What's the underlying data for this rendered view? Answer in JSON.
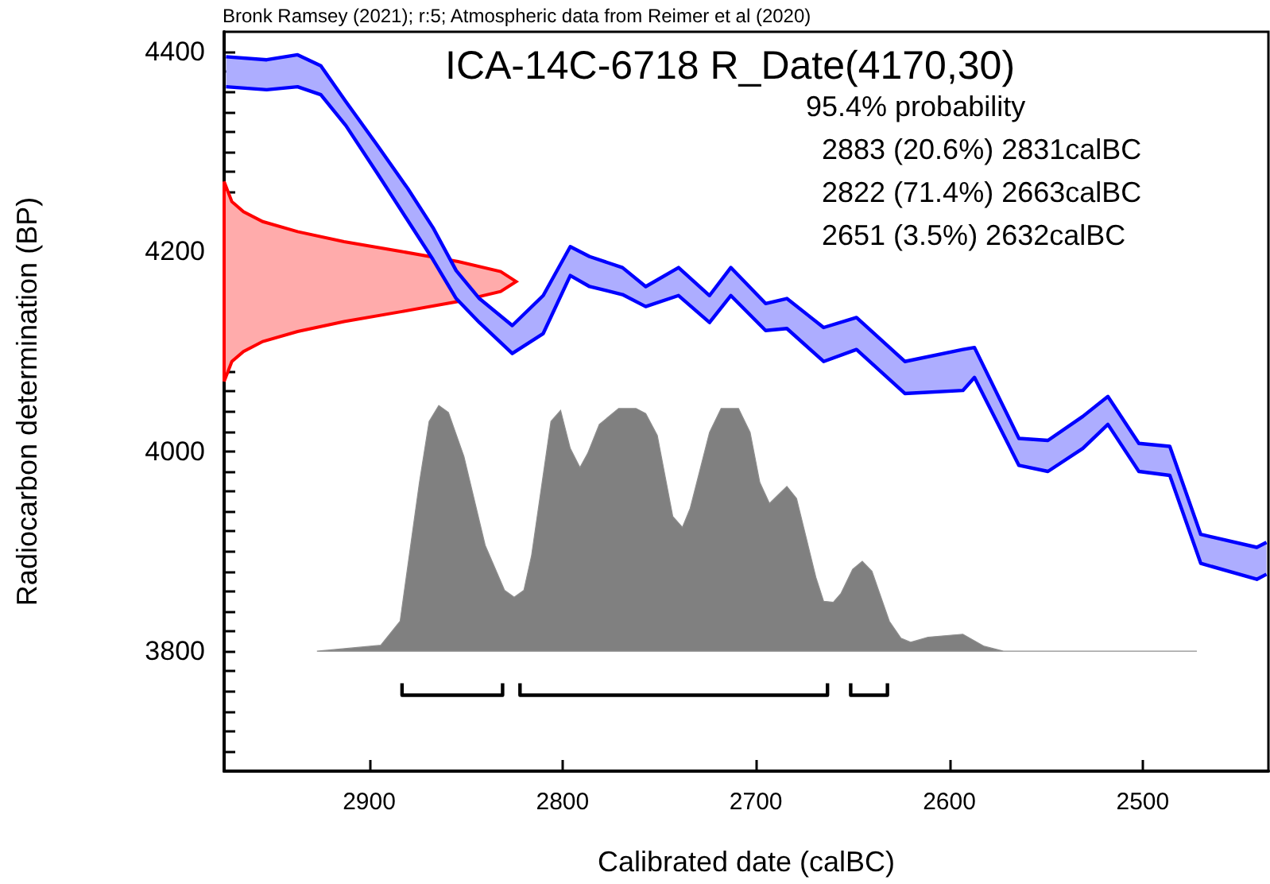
{
  "chart_data": {
    "type": "line",
    "title": "ICA-14C-6718 R_Date(4170,30)",
    "xlabel": "Calibrated date (calBC)",
    "ylabel": "Radiocarbon determination (BP)",
    "annotations": [
      "Bronk Ramsey (2021); r:5; Atmospheric data from Reimer et al (2020)",
      "95.4% probability",
      "2883 (20.6%) 2831calBC",
      "2822 (71.4%) 2663calBC",
      "2651 (3.5%) 2632calBC"
    ],
    "xlim": [
      2975,
      2435
    ],
    "xticks": [
      2900,
      2800,
      2700,
      2600,
      2500
    ],
    "ylim": [
      3680,
      4420
    ],
    "yticks": [
      {
        "value": 3700,
        "label": null
      },
      {
        "value": 3720,
        "label": null
      },
      {
        "value": 3740,
        "label": null
      },
      {
        "value": 3760,
        "label": null
      },
      {
        "value": 3780,
        "label": null
      },
      3800,
      {
        "value": 3820,
        "label": null
      },
      {
        "value": 3840,
        "label": null
      },
      {
        "value": 3860,
        "label": null
      },
      {
        "value": 3880,
        "label": null
      },
      {
        "value": 3900,
        "label": null
      },
      {
        "value": 3920,
        "label": null
      },
      {
        "value": 3940,
        "label": null
      },
      {
        "value": 3960,
        "label": null
      },
      {
        "value": 3980,
        "label": null
      },
      4000,
      {
        "value": 4020,
        "label": null
      },
      {
        "value": 4040,
        "label": null
      },
      {
        "value": 4060,
        "label": null
      },
      {
        "value": 4080,
        "label": null
      },
      {
        "value": 4100,
        "label": null
      },
      {
        "value": 4120,
        "label": null
      },
      {
        "value": 4140,
        "label": null
      },
      {
        "value": 4160,
        "label": null
      },
      {
        "value": 4180,
        "label": null
      },
      4200,
      {
        "value": 4220,
        "label": null
      },
      {
        "value": 4240,
        "label": null
      },
      {
        "value": 4260,
        "label": null
      },
      {
        "value": 4280,
        "label": null
      },
      {
        "value": 4300,
        "label": null
      },
      {
        "value": 4320,
        "label": null
      },
      {
        "value": 4340,
        "label": null
      },
      {
        "value": 4360,
        "label": null
      },
      {
        "value": 4380,
        "label": null
      },
      4400
    ],
    "grid": false,
    "series": [
      {
        "color": "#0000ff",
        "x": [
          2974,
          2953,
          2937,
          2925,
          2912,
          2896,
          2880,
          2867,
          2855,
          2843,
          2826,
          2810,
          2796,
          2786,
          2769,
          2757,
          2740,
          2724,
          2713,
          2695,
          2684,
          2665,
          2648,
          2623,
          2593,
          2587,
          2564,
          2549,
          2531,
          2518,
          2502,
          2486,
          2470,
          2441,
          2436
        ],
        "upper": [
          4395,
          4392,
          4397,
          4386,
          4350,
          4307,
          4263,
          4224,
          4181,
          4153,
          4126,
          4156,
          4205,
          4195,
          4184,
          4165,
          4184,
          4156,
          4184,
          4148,
          4153,
          4124,
          4134,
          4090,
          4102,
          4104,
          4013,
          4011,
          4035,
          4055,
          4008,
          4005,
          3917,
          3904,
          3909
        ],
        "lower": [
          4365,
          4362,
          4365,
          4357,
          4326,
          4279,
          4231,
          4192,
          4153,
          4129,
          4098,
          4118,
          4176,
          4165,
          4157,
          4145,
          4156,
          4129,
          4156,
          4121,
          4123,
          4090,
          4102,
          4058,
          4061,
          4074,
          3986,
          3980,
          4003,
          4027,
          3980,
          3976,
          3888,
          3872,
          3877
        ],
        "values": [
          4395,
          4392,
          4397,
          4386,
          4350,
          4307,
          4263,
          4224,
          4181,
          4153,
          4126,
          4156,
          4205,
          4195,
          4184,
          4165,
          4184,
          4156,
          4184,
          4148,
          4153,
          4124,
          4134,
          4090,
          4102,
          4104,
          4013,
          4011,
          4035,
          4055,
          4008,
          4005,
          3917,
          3904,
          3909
        ]
      },
      {
        "color": "#0000ff",
        "x": [
          2974,
          2953,
          2937,
          2925,
          2912,
          2896,
          2880,
          2867,
          2855,
          2843,
          2826,
          2810,
          2796,
          2786,
          2769,
          2757,
          2740,
          2724,
          2713,
          2695,
          2684,
          2665,
          2648,
          2623,
          2593,
          2587,
          2564,
          2549,
          2531,
          2518,
          2502,
          2486,
          2470,
          2441,
          2436
        ],
        "values": [
          4365,
          4362,
          4365,
          4357,
          4326,
          4279,
          4231,
          4192,
          4153,
          4129,
          4098,
          4118,
          4176,
          4165,
          4157,
          4145,
          4156,
          4129,
          4156,
          4121,
          4123,
          4090,
          4102,
          4058,
          4061,
          4074,
          3986,
          3980,
          4003,
          4027,
          3980,
          3976,
          3888,
          3872,
          3877
        ]
      },
      {
        "type": "area",
        "color": "#ff0000",
        "x": [
          2975,
          2971,
          2965,
          2955,
          2937,
          2913,
          2883,
          2854,
          2832,
          2824,
          2832,
          2854,
          2883,
          2913,
          2937,
          2955,
          2965,
          2971,
          2975
        ],
        "values": [
          4070,
          4090,
          4100,
          4110,
          4120,
          4130,
          4140,
          4150,
          4160,
          4170,
          4180,
          4190,
          4200,
          4210,
          4220,
          4230,
          4240,
          4250,
          4270
        ]
      },
      {
        "type": "area",
        "color": "#808080",
        "x": [
          2927,
          2894,
          2884,
          2874,
          2869,
          2864,
          2859,
          2851,
          2840,
          2830,
          2825,
          2820,
          2816,
          2806,
          2801,
          2796,
          2791,
          2787,
          2781,
          2771,
          2762,
          2757,
          2751,
          2743,
          2738,
          2734,
          2724,
          2718,
          2709,
          2703,
          2698,
          2693,
          2684,
          2679,
          2669,
          2665,
          2660,
          2656,
          2650,
          2645,
          2640,
          2631,
          2625,
          2620,
          2611,
          2593,
          2582,
          2572,
          2472
        ],
        "values": [
          3800,
          3806,
          3830,
          3969,
          4030,
          4046,
          4039,
          3995,
          3906,
          3861,
          3854,
          3861,
          3896,
          4030,
          4041,
          4003,
          3984,
          3998,
          4027,
          4043,
          4043,
          4038,
          4016,
          3935,
          3924,
          3943,
          4019,
          4043,
          4043,
          4019,
          3969,
          3948,
          3965,
          3953,
          3874,
          3850,
          3849,
          3858,
          3882,
          3890,
          3880,
          3830,
          3813,
          3809,
          3814,
          3817,
          3805,
          3800,
          3800
        ]
      },
      {
        "color": "#000000",
        "x": [
          2883,
          2883,
          2831,
          2831
        ],
        "values": [
          3768,
          3756,
          3756,
          3768
        ]
      },
      {
        "color": "#000000",
        "x": [
          2822,
          2822,
          2663,
          2663
        ],
        "values": [
          3768,
          3756,
          3756,
          3768
        ]
      },
      {
        "color": "#000000",
        "x": [
          2651,
          2651,
          2632,
          2632
        ],
        "values": [
          3768,
          3756,
          3756,
          3768
        ]
      }
    ]
  }
}
